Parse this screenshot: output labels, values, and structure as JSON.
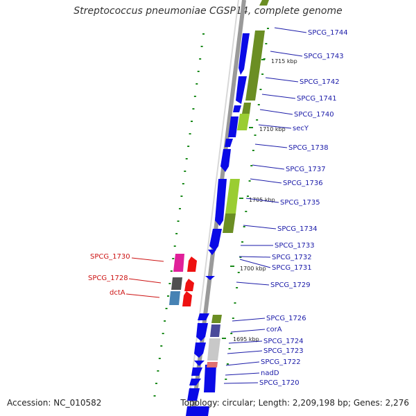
{
  "title": "Streptococcus pneumoniae CGSP14, complete genome",
  "footer": {
    "accession": "Accession: NC_010582",
    "summary": "Topology: circular; Length: 2,209,198 bp; Genes: 2,276"
  },
  "scale_labels": [
    "1715 kbp",
    "1710 kbp",
    "1705 kbp",
    "1700 kbp",
    "1695 kbp"
  ],
  "outer_gene_labels": [
    "SPCG_1744",
    "SPCG_1743",
    "SPCG_1742",
    "SPCG_1741",
    "SPCG_1740",
    "secY",
    "SPCG_1738",
    "SPCG_1737",
    "SPCG_1736",
    "SPCG_1735",
    "SPCG_1734",
    "SPCG_1733",
    "SPCG_1732",
    "SPCG_1731",
    "SPCG_1729",
    "SPCG_1726",
    "corA",
    "SPCG_1724",
    "SPCG_1723",
    "SPCG_1722",
    "nadD",
    "SPCG_1720"
  ],
  "inner_gene_labels": [
    "SPCG_1730",
    "SPCG_1728",
    "dctA"
  ],
  "colors": {
    "cds_blue": "#0a0ae6",
    "cog_olive": "#6b8e23",
    "cog_lime": "#9acd32",
    "label_blue": "#1a1aa8",
    "label_red": "#cc1111",
    "rna_red": "#ee1111",
    "gc_green": "#1a8a1a"
  }
}
